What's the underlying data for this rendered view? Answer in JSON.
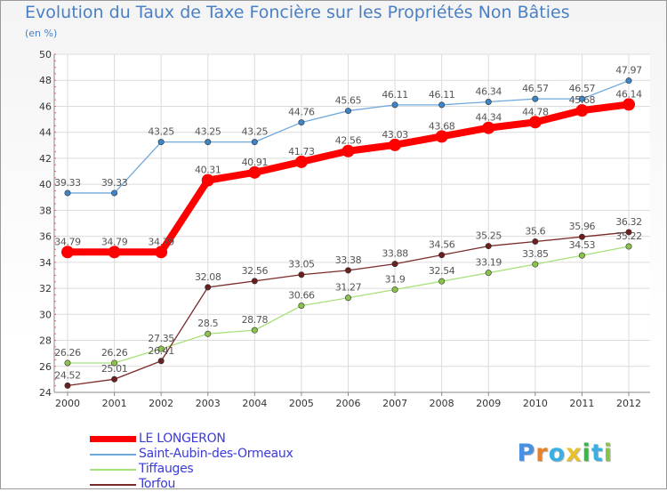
{
  "title": "Evolution du Taux de Taxe Foncière sur les Propriétés Non Bâties",
  "unit_label": "(en %)",
  "brand": {
    "letters": [
      "P",
      "r",
      "o",
      "x",
      "i",
      "t",
      "i"
    ],
    "colors": [
      "#4a90e2",
      "#e8812a",
      "#3ab0e2",
      "#e8c12a",
      "#3bb54a",
      "#3ab0e2",
      "#8bc34a"
    ]
  },
  "chart_data": {
    "type": "line",
    "x": [
      "2000",
      "2001",
      "2002",
      "2003",
      "2004",
      "2005",
      "2006",
      "2007",
      "2008",
      "2009",
      "2010",
      "2011",
      "2012"
    ],
    "ylim": [
      24,
      50
    ],
    "yticks": [
      24,
      26,
      28,
      30,
      32,
      34,
      36,
      38,
      40,
      42,
      44,
      46,
      48,
      50
    ],
    "grid": true,
    "legend_position": "bottom-left",
    "series": [
      {
        "name": "LE LONGERON",
        "values": [
          34.79,
          34.79,
          34.79,
          40.31,
          40.91,
          41.73,
          42.56,
          43.03,
          43.68,
          44.34,
          44.78,
          45.68,
          46.14
        ],
        "labels": [
          "34.79",
          "34.79",
          "34.79",
          "40.31",
          "40.91",
          "41.73",
          "42.56",
          "43.03",
          "43.68",
          "44.34",
          "44.78",
          "45.68",
          "46.14"
        ],
        "color": "#ff0000",
        "marker": "#ff0000"
      },
      {
        "name": "Saint-Aubin-des-Ormeaux",
        "values": [
          39.33,
          39.33,
          43.25,
          43.25,
          43.25,
          44.76,
          45.65,
          46.11,
          46.11,
          46.34,
          46.57,
          46.57,
          47.97
        ],
        "labels": [
          "39.33",
          "39.33",
          "43.25",
          "43.25",
          "43.25",
          "44.76",
          "45.65",
          "46.11",
          "46.11",
          "46.34",
          "46.57",
          "46.57",
          "47.97"
        ],
        "color": "#6fa8dc",
        "marker": "#3d85c6"
      },
      {
        "name": "Tiffauges",
        "values": [
          26.26,
          26.26,
          27.35,
          28.5,
          28.78,
          30.66,
          31.27,
          31.9,
          32.54,
          33.19,
          33.85,
          34.53,
          35.22
        ],
        "labels": [
          "26.26",
          "26.26",
          "27.35",
          "28.5",
          "28.78",
          "30.66",
          "31.27",
          "31.9",
          "32.54",
          "33.19",
          "33.85",
          "34.53",
          "35.22"
        ],
        "color": "#a8e07a",
        "marker": "#8bc34a"
      },
      {
        "name": "Torfou",
        "values": [
          24.52,
          25.01,
          26.41,
          32.08,
          32.56,
          33.05,
          33.38,
          33.88,
          34.56,
          35.25,
          35.6,
          35.96,
          36.32
        ],
        "labels": [
          "24.52",
          "25.01",
          "26.41",
          "32.08",
          "32.56",
          "33.05",
          "33.38",
          "33.88",
          "34.56",
          "35.25",
          "35.6",
          "35.96",
          "36.32"
        ],
        "color": "#7b2a2a",
        "marker": "#6b1f1f"
      }
    ]
  }
}
